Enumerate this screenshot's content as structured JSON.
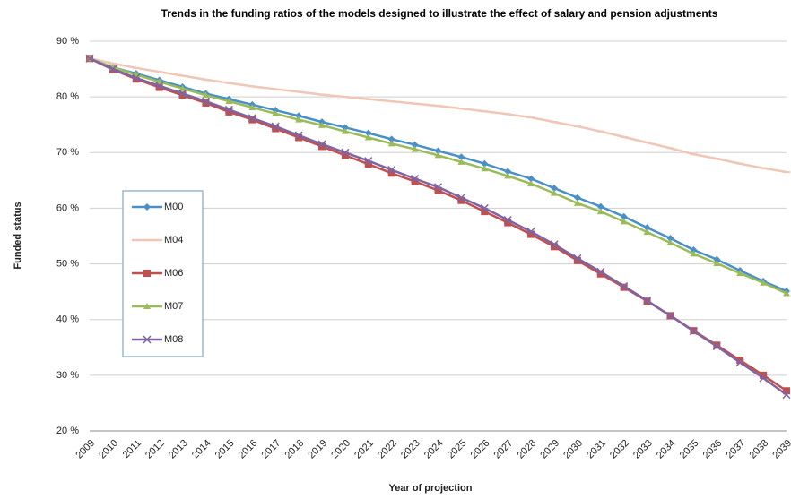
{
  "chart_data": {
    "type": "line",
    "title": "Trends in the funding ratios of the models designed to illustrate the effect of salary and pension adjustments",
    "xlabel": "Year of projection",
    "ylabel": "Funded status",
    "categories": [
      "2009",
      "2010",
      "2011",
      "2012",
      "2013",
      "2014",
      "2015",
      "2016",
      "2017",
      "2018",
      "2019",
      "2020",
      "2021",
      "2022",
      "2023",
      "2024",
      "2025",
      "2026",
      "2027",
      "2028",
      "2029",
      "2030",
      "2031",
      "2032",
      "2033",
      "2034",
      "2035",
      "2036",
      "2037",
      "2038",
      "2039"
    ],
    "series": [
      {
        "name": "M00",
        "color": "#4a90c8",
        "marker": "diamond",
        "values": [
          86.9,
          85.3,
          84.2,
          83,
          81.8,
          80.6,
          79.6,
          78.6,
          77.6,
          76.6,
          75.5,
          74.5,
          73.5,
          72.4,
          71.4,
          70.3,
          69.2,
          68,
          66.6,
          65.3,
          63.6,
          61.9,
          60.3,
          58.5,
          56.5,
          54.6,
          52.5,
          50.8,
          48.8,
          46.9,
          45.1
        ]
      },
      {
        "name": "M04",
        "color": "#f0c6b6",
        "marker": "dash",
        "values": [
          86.9,
          86,
          85.2,
          84.5,
          83.8,
          83.1,
          82.5,
          81.9,
          81.4,
          80.9,
          80.4,
          80,
          79.6,
          79.2,
          78.8,
          78.4,
          77.9,
          77.4,
          76.9,
          76.3,
          75.5,
          74.7,
          73.8,
          72.8,
          71.8,
          70.8,
          69.7,
          68.9,
          68,
          67.2,
          66.5
        ]
      },
      {
        "name": "M06",
        "color": "#c0504d",
        "marker": "square",
        "values": [
          86.9,
          84.9,
          83.2,
          81.7,
          80.3,
          78.9,
          77.3,
          75.9,
          74.3,
          72.7,
          71.1,
          69.5,
          67.9,
          66.3,
          64.8,
          63.2,
          61.4,
          59.4,
          57.4,
          55.3,
          53.1,
          50.6,
          48.2,
          45.8,
          43.3,
          40.7,
          38,
          35.4,
          32.7,
          30,
          27.2
        ]
      },
      {
        "name": "M07",
        "color": "#9bbb59",
        "marker": "triangle",
        "values": [
          86.9,
          85.3,
          84,
          82.7,
          81.5,
          80.3,
          79.2,
          78.1,
          77,
          75.9,
          74.9,
          73.8,
          72.7,
          71.6,
          70.6,
          69.5,
          68.3,
          67.1,
          65.8,
          64.4,
          62.7,
          60.9,
          59.4,
          57.6,
          55.7,
          53.8,
          51.8,
          50.1,
          48.3,
          46.6,
          44.7
        ]
      },
      {
        "name": "M08",
        "color": "#8064a2",
        "marker": "x",
        "values": [
          86.9,
          85,
          83.4,
          82,
          80.6,
          79.2,
          77.7,
          76.2,
          74.7,
          73.1,
          71.5,
          70,
          68.5,
          66.9,
          65.3,
          63.8,
          61.9,
          60,
          57.9,
          55.8,
          53.5,
          51,
          48.6,
          46,
          43.4,
          40.7,
          37.9,
          35.2,
          32.3,
          29.5,
          26.5
        ]
      }
    ],
    "ylim": [
      20,
      90
    ],
    "yticks": [
      {
        "value": 20,
        "label": "20 %"
      },
      {
        "value": 30,
        "label": "30 %"
      },
      {
        "value": 40,
        "label": "40 %"
      },
      {
        "value": 50,
        "label": "50 %"
      },
      {
        "value": 60,
        "label": "60 %"
      },
      {
        "value": 70,
        "label": "70 %"
      },
      {
        "value": 80,
        "label": "80 %"
      },
      {
        "value": 90,
        "label": "90 %"
      }
    ],
    "grid": true,
    "legend": "left"
  }
}
